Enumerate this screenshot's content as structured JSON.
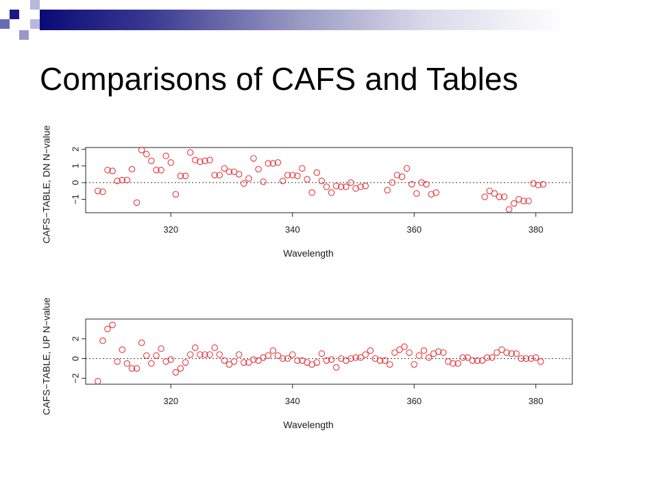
{
  "slide": {
    "title": "Comparisons of CAFS and Tables"
  },
  "colors": {
    "point": "#e8353a",
    "frame": "#222222",
    "refline": "#333333",
    "banner_dark": "#0a0a78",
    "deco_square_dark": "#1a1a86",
    "deco_square_light": "#a8a8d8"
  },
  "chart_data": [
    {
      "type": "scatter",
      "xlabel": "Wavelength",
      "ylabel": "CAFS−TABLE, DN N−value",
      "xticks": [
        "320",
        "340",
        "360",
        "380"
      ],
      "yticks": [
        "−1",
        "0",
        "1",
        "2"
      ],
      "xlim": [
        306,
        386
      ],
      "ylim": [
        -1.8,
        2.1
      ],
      "reference_line": 0,
      "points": [
        [
          308.0,
          -0.5
        ],
        [
          308.8,
          -0.55
        ],
        [
          309.6,
          0.75
        ],
        [
          310.4,
          0.7
        ],
        [
          311.2,
          0.1
        ],
        [
          312.0,
          0.15
        ],
        [
          312.8,
          0.15
        ],
        [
          313.6,
          0.8
        ],
        [
          314.4,
          -1.2
        ],
        [
          315.2,
          1.95
        ],
        [
          316.0,
          1.7
        ],
        [
          316.8,
          1.3
        ],
        [
          317.6,
          0.75
        ],
        [
          318.4,
          0.75
        ],
        [
          319.2,
          1.6
        ],
        [
          320.0,
          1.2
        ],
        [
          320.8,
          -0.7
        ],
        [
          321.6,
          0.4
        ],
        [
          322.4,
          0.4
        ],
        [
          323.2,
          1.8
        ],
        [
          324.0,
          1.35
        ],
        [
          324.8,
          1.25
        ],
        [
          325.6,
          1.3
        ],
        [
          326.4,
          1.35
        ],
        [
          327.2,
          0.45
        ],
        [
          328.0,
          0.45
        ],
        [
          328.8,
          0.85
        ],
        [
          329.6,
          0.65
        ],
        [
          330.4,
          0.65
        ],
        [
          331.2,
          0.5
        ],
        [
          332.0,
          -0.05
        ],
        [
          332.8,
          0.25
        ],
        [
          333.6,
          1.45
        ],
        [
          334.4,
          0.8
        ],
        [
          335.2,
          0.05
        ],
        [
          336.0,
          1.15
        ],
        [
          336.8,
          1.15
        ],
        [
          337.6,
          1.2
        ],
        [
          338.4,
          0.1
        ],
        [
          339.2,
          0.45
        ],
        [
          340.0,
          0.45
        ],
        [
          340.8,
          0.4
        ],
        [
          341.6,
          0.85
        ],
        [
          342.4,
          0.2
        ],
        [
          343.2,
          -0.6
        ],
        [
          344.0,
          0.6
        ],
        [
          344.8,
          0.1
        ],
        [
          345.6,
          -0.25
        ],
        [
          346.4,
          -0.6
        ],
        [
          347.2,
          -0.2
        ],
        [
          348.0,
          -0.25
        ],
        [
          348.8,
          -0.25
        ],
        [
          349.6,
          0.0
        ],
        [
          350.4,
          -0.35
        ],
        [
          351.2,
          -0.25
        ],
        [
          352.0,
          -0.2
        ],
        [
          355.6,
          -0.45
        ],
        [
          356.4,
          0.0
        ],
        [
          357.2,
          0.45
        ],
        [
          358.0,
          0.35
        ],
        [
          358.8,
          0.85
        ],
        [
          359.6,
          -0.1
        ],
        [
          360.4,
          -0.65
        ],
        [
          361.2,
          0.0
        ],
        [
          362.0,
          -0.1
        ],
        [
          362.8,
          -0.7
        ],
        [
          363.6,
          -0.6
        ],
        [
          371.6,
          -0.85
        ],
        [
          372.4,
          -0.5
        ],
        [
          373.2,
          -0.65
        ],
        [
          374.0,
          -0.85
        ],
        [
          374.8,
          -0.85
        ],
        [
          375.6,
          -1.6
        ],
        [
          376.4,
          -1.25
        ],
        [
          377.2,
          -1.0
        ],
        [
          378.0,
          -1.1
        ],
        [
          378.8,
          -1.1
        ],
        [
          379.6,
          -0.05
        ],
        [
          380.4,
          -0.15
        ],
        [
          381.2,
          -0.1
        ]
      ]
    },
    {
      "type": "scatter",
      "xlabel": "Wavelength",
      "ylabel": "CAFS−TABLE, UP N−value",
      "xticks": [
        "320",
        "340",
        "360",
        "380"
      ],
      "yticks": [
        "−2",
        "0",
        "2"
      ],
      "xlim": [
        306,
        386
      ],
      "ylim": [
        -2.6,
        4.0
      ],
      "reference_line": 0,
      "points": [
        [
          308.0,
          -2.3
        ],
        [
          308.8,
          1.8
        ],
        [
          309.6,
          3.0
        ],
        [
          310.4,
          3.4
        ],
        [
          311.2,
          -0.3
        ],
        [
          312.0,
          0.9
        ],
        [
          312.8,
          -0.5
        ],
        [
          313.6,
          -1.0
        ],
        [
          314.4,
          -1.0
        ],
        [
          315.2,
          1.6
        ],
        [
          316.0,
          0.3
        ],
        [
          316.8,
          -0.5
        ],
        [
          317.6,
          0.3
        ],
        [
          318.4,
          1.0
        ],
        [
          319.2,
          -0.3
        ],
        [
          320.0,
          -0.1
        ],
        [
          320.8,
          -1.4
        ],
        [
          321.6,
          -1.0
        ],
        [
          322.4,
          -0.4
        ],
        [
          323.2,
          0.4
        ],
        [
          324.0,
          1.1
        ],
        [
          324.8,
          0.4
        ],
        [
          325.6,
          0.4
        ],
        [
          326.4,
          0.4
        ],
        [
          327.2,
          1.1
        ],
        [
          328.0,
          0.4
        ],
        [
          328.8,
          -0.2
        ],
        [
          329.6,
          -0.6
        ],
        [
          330.4,
          -0.3
        ],
        [
          331.2,
          0.4
        ],
        [
          332.0,
          -0.4
        ],
        [
          332.8,
          -0.4
        ],
        [
          333.6,
          -0.1
        ],
        [
          334.4,
          -0.2
        ],
        [
          335.2,
          0.1
        ],
        [
          336.0,
          0.3
        ],
        [
          336.8,
          0.8
        ],
        [
          337.6,
          0.3
        ],
        [
          338.4,
          0.0
        ],
        [
          339.2,
          0.0
        ],
        [
          340.0,
          0.4
        ],
        [
          340.8,
          -0.2
        ],
        [
          341.6,
          -0.2
        ],
        [
          342.4,
          -0.4
        ],
        [
          343.2,
          -0.6
        ],
        [
          344.0,
          -0.4
        ],
        [
          344.8,
          0.5
        ],
        [
          345.6,
          -0.2
        ],
        [
          346.4,
          -0.1
        ],
        [
          347.2,
          -0.9
        ],
        [
          348.0,
          0.0
        ],
        [
          348.8,
          -0.2
        ],
        [
          349.6,
          0.0
        ],
        [
          350.4,
          0.1
        ],
        [
          351.2,
          0.1
        ],
        [
          352.0,
          0.4
        ],
        [
          352.8,
          0.8
        ],
        [
          353.6,
          0.0
        ],
        [
          354.4,
          -0.2
        ],
        [
          355.2,
          -0.2
        ],
        [
          356.0,
          -0.6
        ],
        [
          356.8,
          0.6
        ],
        [
          357.6,
          0.9
        ],
        [
          358.4,
          1.2
        ],
        [
          359.2,
          0.6
        ],
        [
          360.0,
          -0.6
        ],
        [
          360.8,
          0.3
        ],
        [
          361.6,
          0.8
        ],
        [
          362.4,
          0.1
        ],
        [
          363.2,
          0.5
        ],
        [
          364.0,
          0.7
        ],
        [
          364.8,
          0.6
        ],
        [
          365.6,
          -0.3
        ],
        [
          366.4,
          -0.5
        ],
        [
          367.2,
          -0.5
        ],
        [
          368.0,
          0.1
        ],
        [
          368.8,
          0.1
        ],
        [
          369.6,
          -0.2
        ],
        [
          370.4,
          -0.2
        ],
        [
          371.2,
          -0.2
        ],
        [
          372.0,
          0.1
        ],
        [
          372.8,
          0.1
        ],
        [
          373.6,
          0.6
        ],
        [
          374.4,
          0.9
        ],
        [
          375.2,
          0.6
        ],
        [
          376.0,
          0.5
        ],
        [
          376.8,
          0.5
        ],
        [
          377.6,
          0.0
        ],
        [
          378.4,
          0.0
        ],
        [
          379.2,
          0.0
        ],
        [
          380.0,
          0.1
        ],
        [
          380.8,
          -0.3
        ]
      ]
    }
  ]
}
